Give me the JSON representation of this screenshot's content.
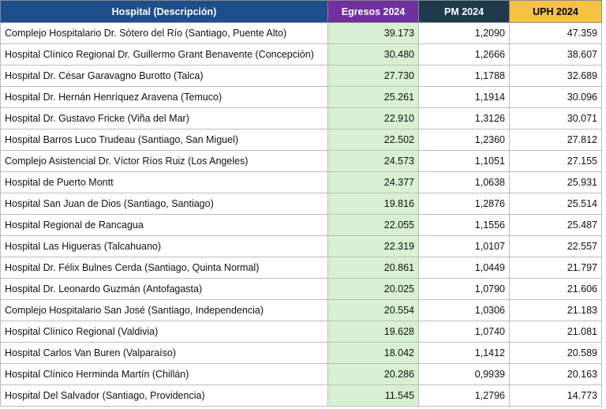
{
  "table": {
    "columns": [
      "Hospital (Descripción)",
      "Egresos 2024",
      "PM 2024",
      "UPH 2024"
    ],
    "header_colors": {
      "hospital": "#1f4e8c",
      "egresos": "#7030a0",
      "pm": "#1e3a4c",
      "uph": "#f6c244"
    },
    "egresos_cell_color": "#d8f0d2",
    "rows": [
      {
        "hospital": "Complejo Hospitalario Dr. Sótero del Río (Santiago, Puente Alto)",
        "egresos": "39.173",
        "pm": "1,2090",
        "uph": "47.359"
      },
      {
        "hospital": "Hospital Clínico Regional Dr. Guillermo Grant Benavente (Concepción)",
        "egresos": "30.480",
        "pm": "1,2666",
        "uph": "38.607"
      },
      {
        "hospital": "Hospital Dr. César Garavagno Burotto (Talca)",
        "egresos": "27.730",
        "pm": "1,1788",
        "uph": "32.689"
      },
      {
        "hospital": "Hospital Dr. Hernán Henríquez Aravena (Temuco)",
        "egresos": "25.261",
        "pm": "1,1914",
        "uph": "30.096"
      },
      {
        "hospital": "Hospital Dr. Gustavo Fricke (Viña del Mar)",
        "egresos": "22.910",
        "pm": "1,3126",
        "uph": "30.071"
      },
      {
        "hospital": "Hospital Barros Luco Trudeau (Santiago, San Miguel)",
        "egresos": "22.502",
        "pm": "1,2360",
        "uph": "27.812"
      },
      {
        "hospital": "Complejo Asistencial Dr. Víctor Ríos Ruiz (Los Angeles)",
        "egresos": "24.573",
        "pm": "1,1051",
        "uph": "27.155"
      },
      {
        "hospital": "Hospital de Puerto Montt",
        "egresos": "24.377",
        "pm": "1,0638",
        "uph": "25.931"
      },
      {
        "hospital": "Hospital San Juan de Dios (Santiago, Santiago)",
        "egresos": "19.816",
        "pm": "1,2876",
        "uph": "25.514"
      },
      {
        "hospital": "Hospital Regional de Rancagua",
        "egresos": "22.055",
        "pm": "1,1556",
        "uph": "25.487"
      },
      {
        "hospital": "Hospital Las Higueras (Talcahuano)",
        "egresos": "22.319",
        "pm": "1,0107",
        "uph": "22.557"
      },
      {
        "hospital": "Hospital Dr. Félix Bulnes Cerda (Santiago, Quinta Normal)",
        "egresos": "20.861",
        "pm": "1,0449",
        "uph": "21.797"
      },
      {
        "hospital": "Hospital Dr. Leonardo Guzmán (Antofagasta)",
        "egresos": "20.025",
        "pm": "1,0790",
        "uph": "21.606"
      },
      {
        "hospital": "Complejo Hospitalario San José (Santiago, Independencia)",
        "egresos": "20.554",
        "pm": "1,0306",
        "uph": "21.183"
      },
      {
        "hospital": "Hospital Clínico Regional (Valdivia)",
        "egresos": "19.628",
        "pm": "1,0740",
        "uph": "21.081"
      },
      {
        "hospital": "Hospital Carlos Van Buren (Valparaíso)",
        "egresos": "18.042",
        "pm": "1,1412",
        "uph": "20.589"
      },
      {
        "hospital": "Hospital Clínico Herminda Martín (Chillán)",
        "egresos": "20.286",
        "pm": "0,9939",
        "uph": "20.163"
      },
      {
        "hospital": "Hospital Del Salvador (Santiago, Providencia)",
        "egresos": "11.545",
        "pm": "1,2796",
        "uph": "14.773"
      }
    ]
  }
}
